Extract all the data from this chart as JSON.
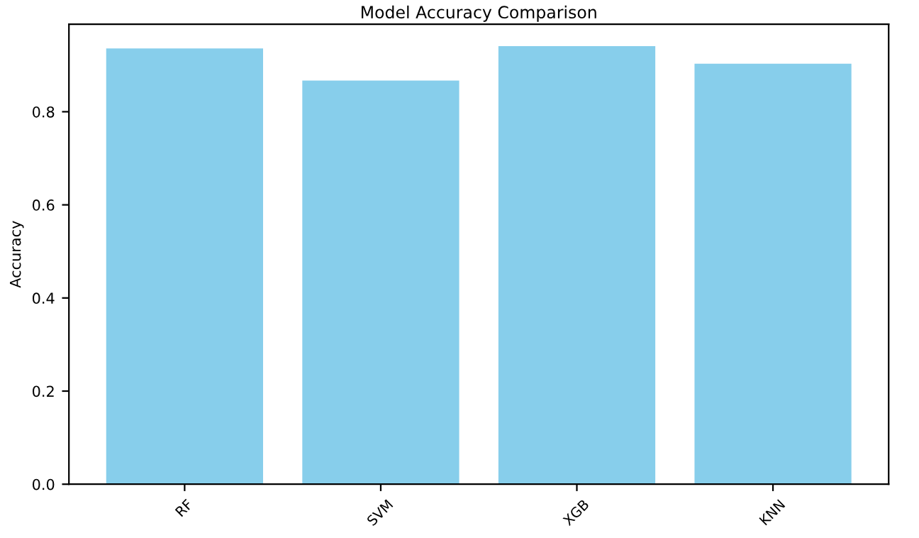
{
  "chart_data": {
    "type": "bar",
    "title": "Model Accuracy Comparison",
    "ylabel": "Accuracy",
    "categories": [
      "RF",
      "SVM",
      "XGB",
      "KNN"
    ],
    "values": [
      0.936,
      0.867,
      0.941,
      0.903
    ],
    "color": "#87ceeb",
    "ylim": [
      0,
      0.988
    ],
    "yticks": [
      {
        "value": 0,
        "label": "0.0"
      },
      {
        "value": 0.2,
        "label": "0.2"
      },
      {
        "value": 0.4,
        "label": "0.4"
      },
      {
        "value": 0.6,
        "label": "0.6"
      },
      {
        "value": 0.8,
        "label": "0.8"
      }
    ],
    "grid": false
  }
}
